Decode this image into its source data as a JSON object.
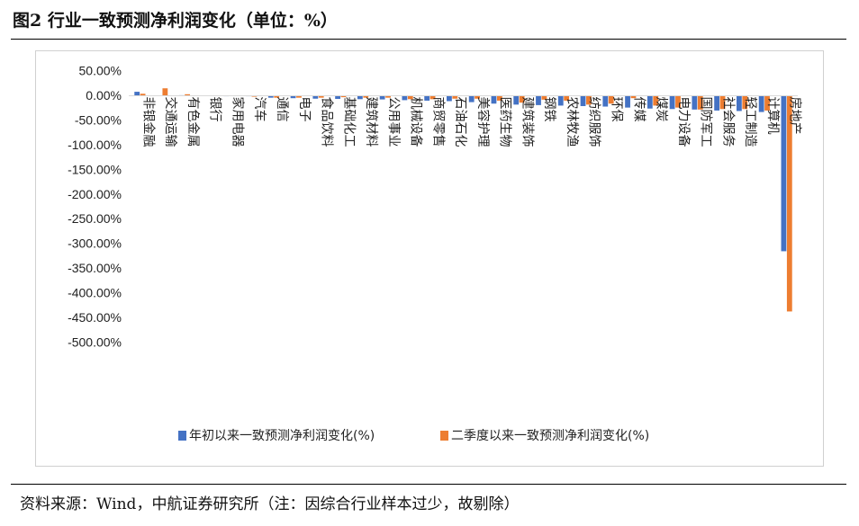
{
  "figure": {
    "title": "图2 行业一致预测净利润变化（单位：%）",
    "source": "资料来源：Wind，中航证券研究所（注：因综合行业样本过少，故剔除）"
  },
  "chart_data": {
    "type": "bar",
    "title": "",
    "xlabel": "",
    "ylabel": "",
    "ylim": [
      -500,
      50
    ],
    "yticks": [
      50,
      0,
      -50,
      -100,
      -150,
      -200,
      -250,
      -300,
      -350,
      -400,
      -450,
      -500
    ],
    "ytick_format": "percent_2dp",
    "grid": false,
    "legend_position": "bottom",
    "categories": [
      "非银金融",
      "交通运输",
      "有色金属",
      "银行",
      "家用电器",
      "汽车",
      "通信",
      "电子",
      "食品饮料",
      "基础化工",
      "建筑材料",
      "公用事业",
      "机械设备",
      "商贸零售",
      "石油石化",
      "美容护理",
      "医药生物",
      "建筑装饰",
      "钢铁",
      "农林牧渔",
      "纺织服饰",
      "环保",
      "传媒",
      "煤炭",
      "电力设备",
      "国防军工",
      "社会服务",
      "轻工制造",
      "计算机",
      "房地产"
    ],
    "series": [
      {
        "name": "年初以来一致预测净利润变化(%)",
        "color": "#4472C4",
        "values": [
          8,
          0.5,
          1,
          0.3,
          -0.5,
          -1,
          -4,
          -5,
          -6,
          -6.5,
          -7,
          -7.5,
          -9,
          -10,
          -11,
          -13,
          -16,
          -18,
          -19,
          -20,
          -21,
          -22,
          -24,
          -26,
          -27,
          -28,
          -30,
          -31,
          -33,
          -315
        ]
      },
      {
        "name": "二季度以来一致预测净利润变化(%)",
        "color": "#ED7D31",
        "values": [
          4,
          15,
          3,
          0.2,
          0.5,
          -2,
          -4,
          -4,
          -4,
          -3,
          -4,
          -4,
          -7,
          -7,
          -6,
          -6,
          -10,
          -14,
          -8,
          -10,
          -18,
          -16,
          -5,
          -20,
          -24,
          -28,
          -27,
          -27,
          -30,
          -437
        ]
      }
    ]
  }
}
